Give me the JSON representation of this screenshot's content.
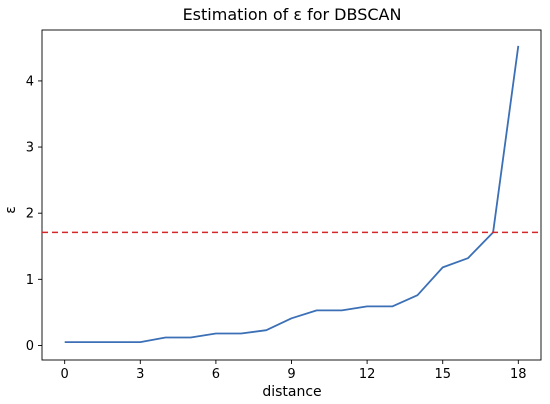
{
  "chart_data": {
    "type": "line",
    "title": "Estimation of ε for DBSCAN",
    "xlabel": "distance",
    "ylabel": "ε",
    "xlim": [
      -0.9,
      18.9
    ],
    "ylim": [
      -0.22,
      4.77
    ],
    "xticks": [
      0,
      3,
      6,
      9,
      12,
      15,
      18
    ],
    "yticks": [
      0,
      1,
      2,
      3,
      4
    ],
    "grid": false,
    "series": [
      {
        "color": "#3b6fb6",
        "x": [
          0,
          1,
          2,
          3,
          4,
          5,
          6,
          7,
          8,
          9,
          10,
          11,
          12,
          13,
          14,
          15,
          16,
          17,
          18
        ],
        "y": [
          0.05,
          0.05,
          0.05,
          0.05,
          0.12,
          0.12,
          0.18,
          0.18,
          0.23,
          0.41,
          0.53,
          0.53,
          0.59,
          0.59,
          0.76,
          1.18,
          1.32,
          1.71,
          4.53
        ]
      }
    ],
    "threshold": {
      "y": 1.71,
      "color": "#d62728",
      "style": "dashed"
    }
  }
}
